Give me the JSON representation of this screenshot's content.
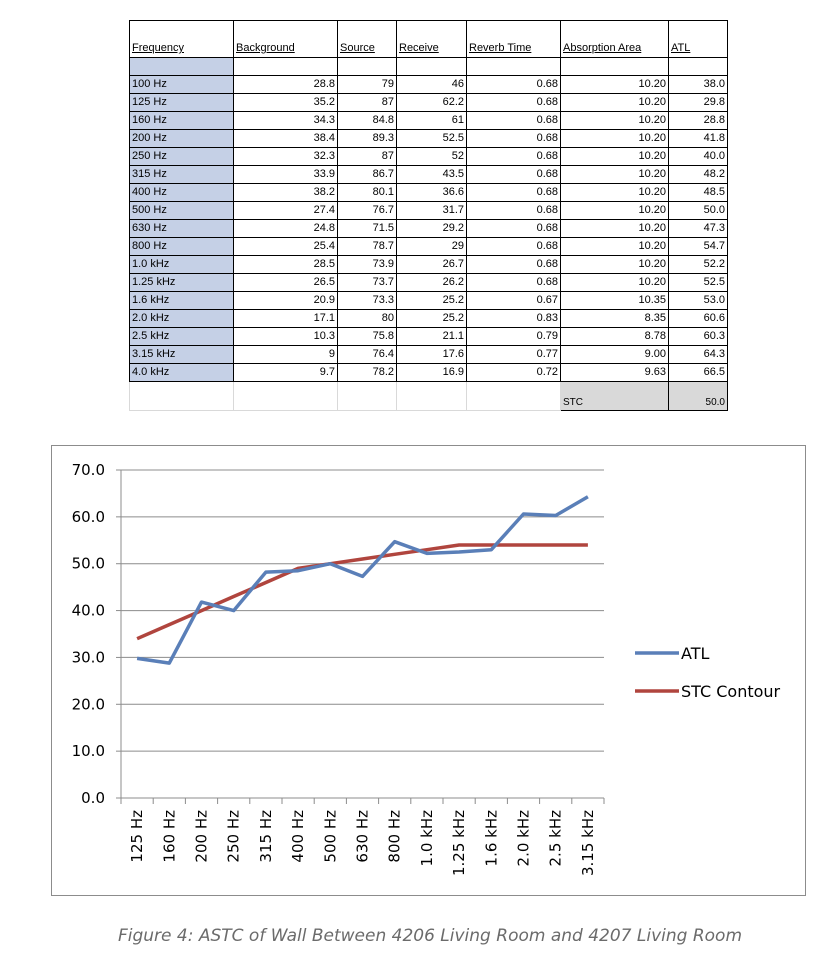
{
  "table": {
    "headers": [
      "Frequency",
      "Background",
      "Source",
      "Receive",
      "Reverb Time",
      "Absorption Area",
      "ATL"
    ],
    "rows": [
      [
        "100 Hz",
        "28.8",
        "79",
        "46",
        "0.68",
        "10.20",
        "38.0"
      ],
      [
        "125 Hz",
        "35.2",
        "87",
        "62.2",
        "0.68",
        "10.20",
        "29.8"
      ],
      [
        "160 Hz",
        "34.3",
        "84.8",
        "61",
        "0.68",
        "10.20",
        "28.8"
      ],
      [
        "200 Hz",
        "38.4",
        "89.3",
        "52.5",
        "0.68",
        "10.20",
        "41.8"
      ],
      [
        "250 Hz",
        "32.3",
        "87",
        "52",
        "0.68",
        "10.20",
        "40.0"
      ],
      [
        "315 Hz",
        "33.9",
        "86.7",
        "43.5",
        "0.68",
        "10.20",
        "48.2"
      ],
      [
        "400 Hz",
        "38.2",
        "80.1",
        "36.6",
        "0.68",
        "10.20",
        "48.5"
      ],
      [
        "500 Hz",
        "27.4",
        "76.7",
        "31.7",
        "0.68",
        "10.20",
        "50.0"
      ],
      [
        "630 Hz",
        "24.8",
        "71.5",
        "29.2",
        "0.68",
        "10.20",
        "47.3"
      ],
      [
        "800 Hz",
        "25.4",
        "78.7",
        "29",
        "0.68",
        "10.20",
        "54.7"
      ],
      [
        "1.0 kHz",
        "28.5",
        "73.9",
        "26.7",
        "0.68",
        "10.20",
        "52.2"
      ],
      [
        "1.25 kHz",
        "26.5",
        "73.7",
        "26.2",
        "0.68",
        "10.20",
        "52.5"
      ],
      [
        "1.6 kHz",
        "20.9",
        "73.3",
        "25.2",
        "0.67",
        "10.35",
        "53.0"
      ],
      [
        "2.0 kHz",
        "17.1",
        "80",
        "25.2",
        "0.83",
        "8.35",
        "60.6"
      ],
      [
        "2.5 kHz",
        "10.3",
        "75.8",
        "21.1",
        "0.79",
        "8.78",
        "60.3"
      ],
      [
        "3.15 kHz",
        "9",
        "76.4",
        "17.6",
        "0.77",
        "9.00",
        "64.3"
      ],
      [
        "4.0 kHz",
        "9.7",
        "78.2",
        "16.9",
        "0.72",
        "9.63",
        "66.5"
      ]
    ],
    "stc_label": "STC",
    "stc_value": "50.0"
  },
  "chart_data": {
    "type": "line",
    "categories": [
      "125 Hz",
      "160 Hz",
      "200 Hz",
      "250 Hz",
      "315 Hz",
      "400 Hz",
      "500 Hz",
      "630 Hz",
      "800 Hz",
      "1.0 kHz",
      "1.25 kHz",
      "1.6 kHz",
      "2.0 kHz",
      "2.5 kHz",
      "3.15 kHz"
    ],
    "series": [
      {
        "name": "ATL",
        "color": "#5a7fb8",
        "values": [
          29.8,
          28.8,
          41.8,
          40.0,
          48.2,
          48.5,
          50.0,
          47.3,
          54.7,
          52.2,
          52.5,
          53.0,
          60.6,
          60.3,
          64.3
        ]
      },
      {
        "name": "STC Contour",
        "color": "#b0453e",
        "values": [
          34,
          37,
          40,
          43,
          46,
          49,
          50,
          51,
          52,
          53,
          54,
          54,
          54,
          54,
          54
        ]
      }
    ],
    "ylim": [
      0,
      70
    ],
    "yticks": [
      "0.0",
      "10.0",
      "20.0",
      "30.0",
      "40.0",
      "50.0",
      "60.0",
      "70.0"
    ],
    "grid": true,
    "legend": "right"
  },
  "caption": "Figure 4: ASTC of Wall Between 4206 Living Room and 4207 Living Room"
}
